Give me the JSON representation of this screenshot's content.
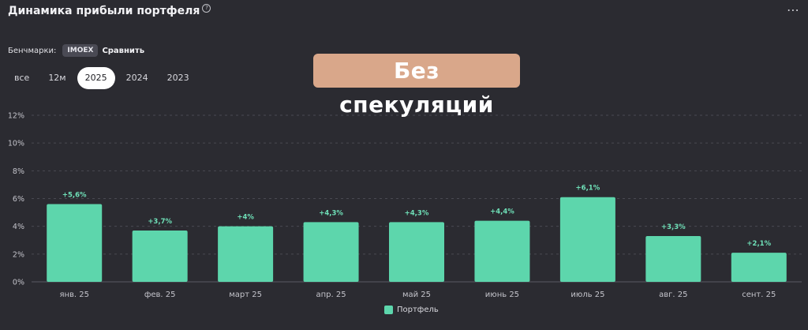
{
  "header": {
    "title": "Динамика прибыли портфеля",
    "help_glyph": "?",
    "menu_glyph": "⋯"
  },
  "benchmarks": {
    "label": "Бенчмарки:",
    "chip": "IMOEX",
    "compare": "Сравнить"
  },
  "periods": [
    {
      "label": "все",
      "active": false
    },
    {
      "label": "12м",
      "active": false
    },
    {
      "label": "2025",
      "active": true
    },
    {
      "label": "2024",
      "active": false
    },
    {
      "label": "2023",
      "active": false
    }
  ],
  "overlay_text": "Без спекуляций",
  "colors": {
    "bar": "#5dd6ac",
    "bar_label": "#6fe0b8",
    "background": "#2b2b31",
    "overlay": "#d9a78a"
  },
  "chart_data": {
    "type": "bar",
    "categories": [
      "янв. 25",
      "фев. 25",
      "март 25",
      "апр. 25",
      "май 25",
      "июнь 25",
      "июль 25",
      "авг. 25",
      "сент. 25"
    ],
    "series": [
      {
        "name": "Портфель",
        "values": [
          5.6,
          3.7,
          4.0,
          4.3,
          4.3,
          4.4,
          6.1,
          3.3,
          2.1
        ],
        "labels": [
          "+5,6%",
          "+3,7%",
          "+4%",
          "+4,3%",
          "+4,3%",
          "+4,4%",
          "+6,1%",
          "+3,3%",
          "+2,1%"
        ]
      }
    ],
    "yticks": [
      "0%",
      "2%",
      "4%",
      "6%",
      "8%",
      "10%",
      "12%"
    ],
    "ylim": [
      0,
      12
    ],
    "grid": true,
    "legend_position": "bottom-center"
  }
}
